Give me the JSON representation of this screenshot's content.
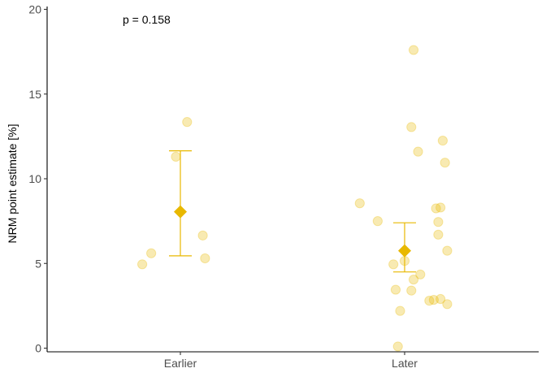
{
  "chart_data": {
    "type": "scatter",
    "title": "",
    "xlabel": "",
    "ylabel": "NRM point estimate [%]",
    "ylim": [
      0,
      20
    ],
    "yticks": [
      0,
      5,
      10,
      15,
      20
    ],
    "categories": [
      "Earlier",
      "Later"
    ],
    "grid": false,
    "legend": "none",
    "annotation": "p = 0.158",
    "colors": {
      "points": "#e8b800",
      "summary": "#e8b800",
      "axis": "#000000"
    },
    "series": [
      {
        "category": "Earlier",
        "points": [
          {
            "jitter": -0.17,
            "y": 4.95
          },
          {
            "jitter": -0.13,
            "y": 5.6
          },
          {
            "jitter": -0.02,
            "y": 11.3
          },
          {
            "jitter": 0.03,
            "y": 13.35
          },
          {
            "jitter": 0.1,
            "y": 6.65
          },
          {
            "jitter": 0.11,
            "y": 5.3
          }
        ],
        "mean": 8.05,
        "ci_low": 5.45,
        "ci_high": 11.65
      },
      {
        "category": "Later",
        "points": [
          {
            "jitter": -0.2,
            "y": 8.55
          },
          {
            "jitter": -0.12,
            "y": 7.5
          },
          {
            "jitter": -0.05,
            "y": 4.95
          },
          {
            "jitter": -0.04,
            "y": 3.45
          },
          {
            "jitter": -0.03,
            "y": 0.1
          },
          {
            "jitter": -0.02,
            "y": 2.2
          },
          {
            "jitter": 0.0,
            "y": 5.15
          },
          {
            "jitter": 0.03,
            "y": 3.4
          },
          {
            "jitter": 0.03,
            "y": 13.05
          },
          {
            "jitter": 0.04,
            "y": 17.6
          },
          {
            "jitter": 0.04,
            "y": 4.05
          },
          {
            "jitter": 0.06,
            "y": 11.6
          },
          {
            "jitter": 0.07,
            "y": 4.35
          },
          {
            "jitter": 0.11,
            "y": 2.8
          },
          {
            "jitter": 0.13,
            "y": 2.85
          },
          {
            "jitter": 0.14,
            "y": 8.25
          },
          {
            "jitter": 0.15,
            "y": 6.7
          },
          {
            "jitter": 0.15,
            "y": 7.45
          },
          {
            "jitter": 0.16,
            "y": 8.3
          },
          {
            "jitter": 0.16,
            "y": 2.9
          },
          {
            "jitter": 0.17,
            "y": 12.25
          },
          {
            "jitter": 0.18,
            "y": 10.95
          },
          {
            "jitter": 0.19,
            "y": 2.6
          },
          {
            "jitter": 0.19,
            "y": 5.75
          }
        ],
        "mean": 5.75,
        "ci_low": 4.5,
        "ci_high": 7.4
      }
    ]
  }
}
